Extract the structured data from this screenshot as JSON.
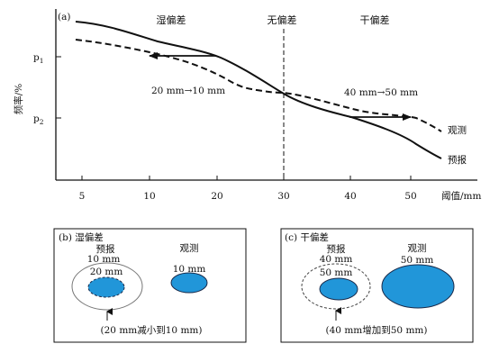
{
  "panel_a": {
    "label": "(a)",
    "ylabel": "频率/%",
    "y_ticks": [
      "p",
      "p"
    ],
    "y_tick_subs": [
      "1",
      "2"
    ],
    "x_ticks": [
      "5",
      "10",
      "20",
      "30",
      "40",
      "50"
    ],
    "xlabel": "阈值/mm",
    "regions": [
      "湿偏差",
      "无偏差",
      "干偏差"
    ],
    "annotation_wet": "20 mm→10 mm",
    "annotation_dry": "40 mm→50 mm",
    "series": [
      {
        "name": "观测",
        "style": "dashed"
      },
      {
        "name": "预报",
        "style": "solid"
      }
    ]
  },
  "panel_b": {
    "label": "(b) 湿偏差",
    "forecast_label": "预报",
    "outer_value": "10 mm",
    "inner_value": "20 mm",
    "obs_label": "观测",
    "obs_value": "10 mm",
    "caption": "(20 mm减小到10 mm)"
  },
  "panel_c": {
    "label": "(c) 干偏差",
    "forecast_label": "预报",
    "outer_value": "40 mm",
    "inner_value": "50 mm",
    "obs_label": "观测",
    "obs_value": "50 mm",
    "caption": "(40 mm增加到50 mm)"
  },
  "colors": {
    "fill_blue": "#2196d9",
    "stroke_dark": "#1a2a4a"
  }
}
